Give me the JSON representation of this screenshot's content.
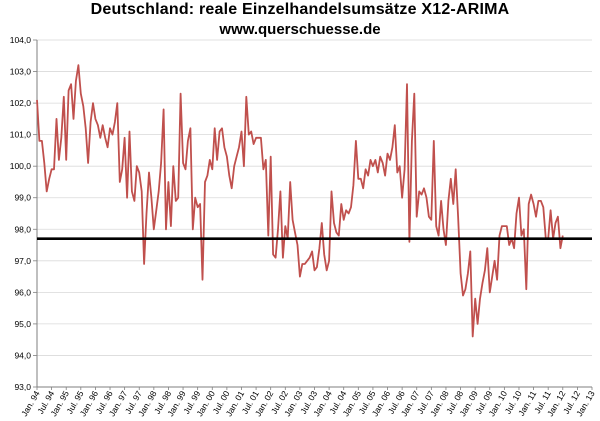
{
  "titles": {
    "line1": "Deutschland: reale Einzelhandelsumsätze  X12-ARIMA",
    "line2": "www.querschuesse.de"
  },
  "colors": {
    "series": "#c0504d",
    "reference": "#000000",
    "grid": "#d9d9d9",
    "axis": "#7f7f7f"
  },
  "chart_data": {
    "type": "line",
    "title": "Deutschland: reale Einzelhandelsumsätze  X12-ARIMA",
    "subtitle": "www.querschuesse.de",
    "xlabel": "",
    "ylabel": "",
    "ylim": [
      93,
      104
    ],
    "y_ticks": [
      "93,0",
      "94,0",
      "95,0",
      "96,0",
      "97,0",
      "98,0",
      "99,0",
      "100,0",
      "101,0",
      "102,0",
      "103,0",
      "104,0"
    ],
    "x_tick_labels": [
      "Jan. 94",
      "Jul. 94",
      "Jan. 95",
      "Jul. 95",
      "Jan. 96",
      "Jul. 96",
      "Jan. 97",
      "Jul. 97",
      "Jan. 98",
      "Jul. 98",
      "Jan. 99",
      "Jul. 99",
      "Jan. 00",
      "Jul. 00",
      "Jan. 01",
      "Jul. 01",
      "Jan. 02",
      "Jul. 02",
      "Jan. 03",
      "Jul. 03",
      "Jan. 04",
      "Jul. 04",
      "Jan. 05",
      "Jul. 05",
      "Jan. 06",
      "Jul. 06",
      "Jan. 07",
      "Jul. 07",
      "Jan. 08",
      "Jul. 08",
      "Jan. 09",
      "Jul. 09",
      "Jan. 10",
      "Jul. 10",
      "Jan. 11",
      "Jul. 11",
      "Jan. 12",
      "Jul. 12",
      "Jan. 13"
    ],
    "grid": "horizontal",
    "legend": "none",
    "reference_line": 97.7,
    "series": [
      {
        "start": "Jan. 94",
        "frequency": "monthly",
        "values": [
          102.1,
          100.8,
          100.8,
          100.1,
          99.2,
          99.6,
          99.9,
          99.9,
          101.5,
          100.2,
          100.9,
          102.2,
          100.2,
          102.4,
          102.6,
          101.5,
          102.7,
          103.2,
          102.3,
          101.9,
          101.2,
          100.1,
          101.4,
          102.0,
          101.5,
          101.3,
          100.9,
          101.3,
          100.9,
          100.6,
          101.2,
          101.0,
          101.4,
          102.0,
          99.5,
          99.9,
          100.9,
          99.0,
          101.1,
          99.2,
          98.9,
          100.0,
          99.8,
          99.2,
          96.9,
          98.5,
          99.8,
          99.0,
          98.0,
          98.6,
          99.2,
          100.1,
          101.8,
          98.0,
          99.5,
          98.1,
          100.0,
          98.9,
          99.0,
          102.3,
          100.1,
          99.9,
          100.8,
          101.2,
          98.0,
          99.0,
          98.7,
          98.8,
          96.4,
          99.5,
          99.7,
          100.2,
          99.9,
          101.2,
          100.2,
          101.1,
          101.2,
          100.6,
          100.3,
          99.7,
          99.3,
          100.0,
          100.3,
          100.6,
          101.1,
          100.0,
          102.2,
          101.0,
          101.1,
          100.7,
          100.9,
          100.9,
          100.9,
          99.9,
          100.2,
          97.8,
          100.3,
          97.2,
          97.1,
          98.0,
          99.2,
          97.1,
          98.1,
          97.7,
          99.5,
          98.3,
          97.9,
          97.5,
          96.5,
          96.9,
          96.9,
          97.0,
          97.1,
          97.3,
          96.7,
          96.8,
          97.4,
          98.2,
          97.2,
          96.7,
          97.0,
          99.2,
          98.2,
          97.9,
          97.8,
          98.8,
          98.3,
          98.6,
          98.5,
          98.7,
          99.4,
          100.8,
          99.6,
          99.6,
          99.3,
          99.9,
          99.7,
          100.2,
          100.0,
          100.2,
          99.8,
          100.3,
          100.1,
          99.7,
          100.4,
          100.2,
          100.6,
          101.3,
          99.8,
          100.0,
          99.0,
          99.9,
          102.6,
          97.6,
          100.8,
          102.3,
          98.4,
          99.2,
          99.1,
          99.3,
          99.0,
          98.4,
          98.3,
          100.8,
          98.1,
          97.8,
          98.9,
          98.0,
          97.5,
          98.9,
          99.6,
          98.8,
          99.9,
          98.4,
          96.6,
          95.9,
          96.1,
          96.6,
          97.3,
          94.6,
          95.8,
          95.0,
          95.8,
          96.3,
          96.7,
          97.4,
          96.0,
          96.5,
          97.0,
          96.4,
          97.8,
          98.1,
          98.1,
          98.1,
          97.5,
          97.7,
          97.4,
          98.5,
          99.0,
          97.8,
          98.0,
          96.1,
          98.8,
          99.1,
          98.8,
          98.4,
          98.9,
          98.9,
          98.7,
          97.7,
          97.7,
          98.6,
          97.7,
          98.2,
          98.4,
          97.4,
          97.8
        ]
      }
    ]
  }
}
